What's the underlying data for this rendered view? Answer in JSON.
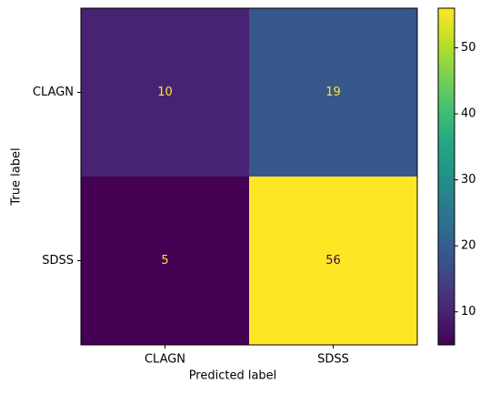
{
  "chart_data": {
    "type": "heatmap",
    "x_categories": [
      "CLAGN",
      "SDSS"
    ],
    "y_categories": [
      "CLAGN",
      "SDSS"
    ],
    "values": [
      [
        10,
        19
      ],
      [
        5,
        56
      ]
    ],
    "xlabel": "Predicted label",
    "ylabel": "True label",
    "colormap": "viridis",
    "colorbar_lim": [
      5,
      56
    ],
    "colorbar_ticks": [
      10,
      20,
      30,
      40,
      50
    ]
  }
}
